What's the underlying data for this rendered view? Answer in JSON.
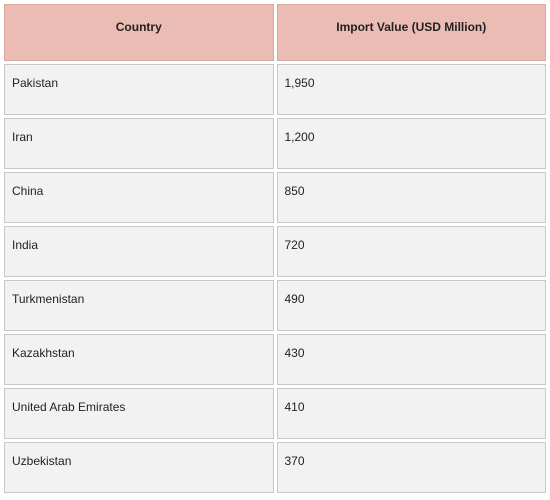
{
  "table": {
    "header": [
      "Country",
      "Import Value (USD Million)"
    ],
    "rows": [
      [
        "Pakistan",
        "1,950"
      ],
      [
        "Iran",
        "1,200"
      ],
      [
        "China",
        "850"
      ],
      [
        "India",
        "720"
      ],
      [
        "Turkmenistan",
        "490"
      ],
      [
        "Kazakhstan",
        "430"
      ],
      [
        "United Arab Emirates",
        "410"
      ],
      [
        "Uzbekistan",
        "370"
      ]
    ]
  }
}
